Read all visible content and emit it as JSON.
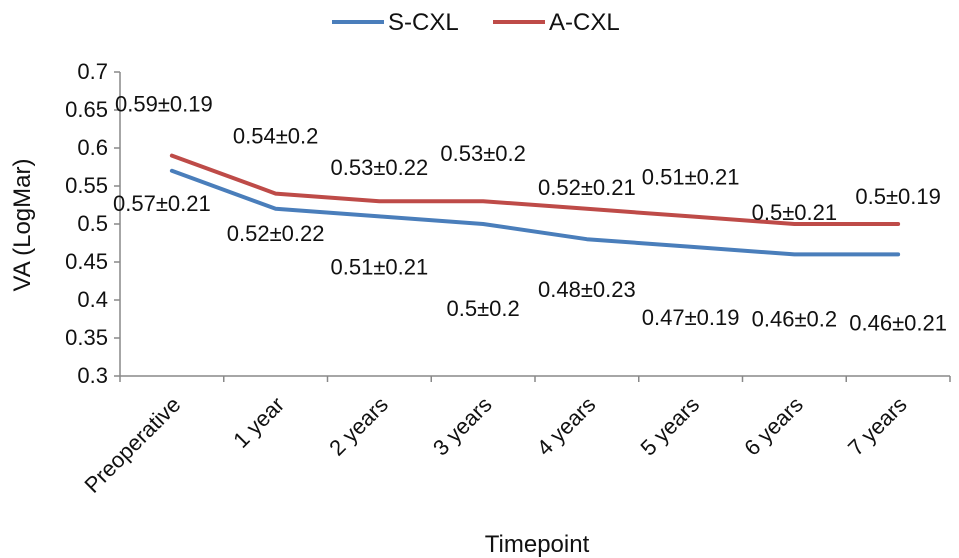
{
  "chart_data": {
    "type": "line",
    "title": "",
    "xlabel": "Timepoint",
    "ylabel": "VA (LogMar)",
    "categories": [
      "Preoperative",
      "1 year",
      "2 years",
      "3 years",
      "4 years",
      "5 years",
      "6 years",
      "7 years"
    ],
    "ylim": [
      0.3,
      0.7
    ],
    "yticks": [
      "0.3",
      "0.35",
      "0.4",
      "0.45",
      "0.5",
      "0.55",
      "0.6",
      "0.65",
      "0.7"
    ],
    "grid": false,
    "legend_position": "top",
    "series": [
      {
        "name": "S-CXL",
        "color": "#4a7ebb",
        "values": [
          0.57,
          0.52,
          0.51,
          0.5,
          0.48,
          0.47,
          0.46,
          0.46
        ],
        "labels": [
          "0.57±0.21",
          "0.52±0.22",
          "0.51±0.21",
          "0.5±0.2",
          "0.48±0.23",
          "0.47±0.19",
          "0.46±0.2",
          "0.46±0.21"
        ]
      },
      {
        "name": "A-CXL",
        "color": "#be4b48",
        "values": [
          0.59,
          0.54,
          0.53,
          0.53,
          0.52,
          0.51,
          0.5,
          0.5
        ],
        "labels": [
          "0.59±0.19",
          "0.54±0.2",
          "0.53±0.22",
          "0.53±0.2",
          "0.52±0.21",
          "0.51±0.21",
          "0.5±0.21",
          "0.5±0.19"
        ]
      }
    ]
  }
}
